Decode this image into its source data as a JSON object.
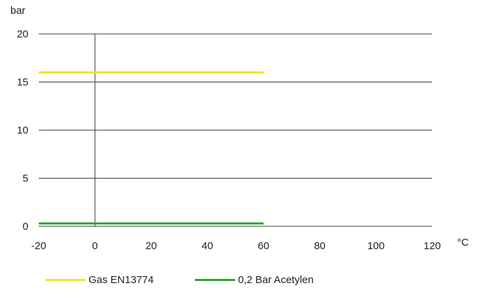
{
  "chart_data": {
    "type": "line",
    "ylabel": "bar",
    "xlabel": "°C",
    "xlim": [
      -20,
      120
    ],
    "ylim": [
      0,
      20
    ],
    "x_ticks": [
      "-20",
      "0",
      "20",
      "40",
      "60",
      "80",
      "100",
      "120"
    ],
    "y_ticks": [
      "0",
      "5",
      "10",
      "15",
      "20"
    ],
    "grid": "horizontal",
    "legend_position": "bottom",
    "series": [
      {
        "name": "Gas EN13774",
        "color": "#f2e32a",
        "points": [
          {
            "x": -20,
            "y": 16
          },
          {
            "x": 60,
            "y": 16
          }
        ]
      },
      {
        "name": "0,2 Bar Acetylen",
        "color": "#2aa526",
        "points": [
          {
            "x": -20,
            "y": 0.3
          },
          {
            "x": 60,
            "y": 0.3
          }
        ]
      }
    ]
  }
}
